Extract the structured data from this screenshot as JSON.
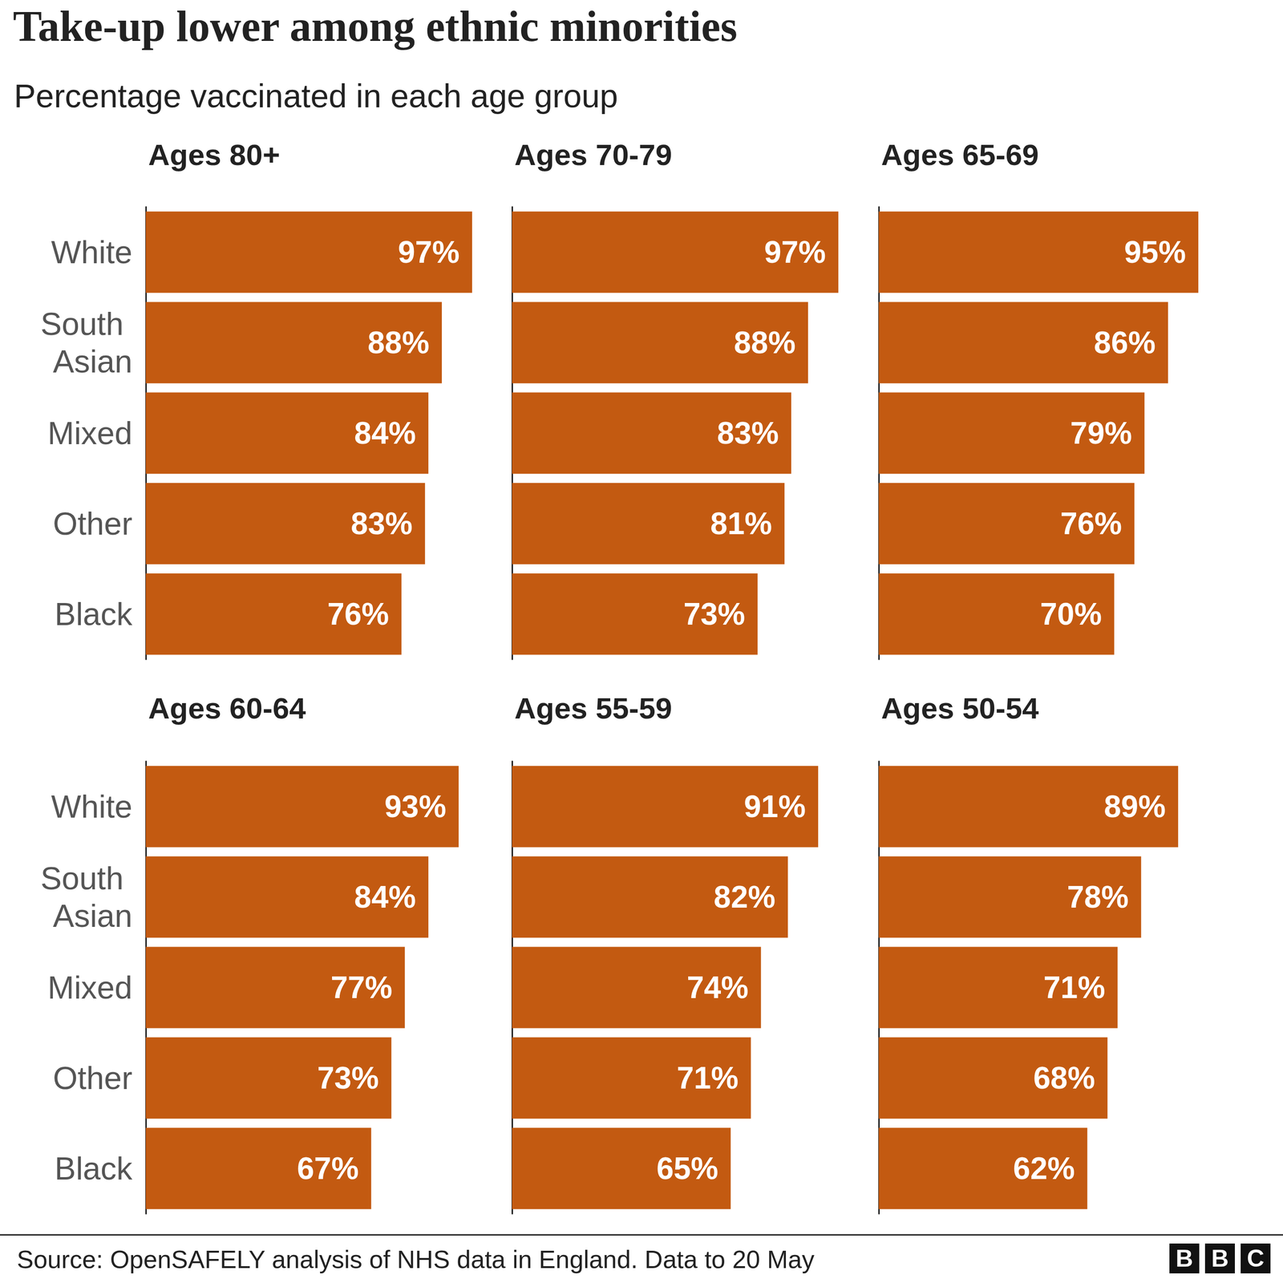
{
  "title": "Take-up lower among ethnic minorities",
  "subtitle": "Percentage vaccinated in each age group",
  "source": "Source: OpenSAFELY analysis of NHS data in England. Data to 20 May",
  "credit": "BBC",
  "chart_data": [
    {
      "type": "bar",
      "title": "Ages 80+",
      "orientation": "horizontal",
      "categories": [
        "White",
        "South Asian",
        "Mixed",
        "Other",
        "Black"
      ],
      "values": [
        97,
        88,
        84,
        83,
        76
      ],
      "value_labels": [
        "97%",
        "88%",
        "84%",
        "83%",
        "76%"
      ],
      "color": "#c35a11",
      "xlim": [
        0,
        100
      ],
      "data_labels": true,
      "tick_labels": "y",
      "grid": false
    },
    {
      "type": "bar",
      "title": "Ages 70-79",
      "orientation": "horizontal",
      "categories": [
        "White",
        "South Asian",
        "Mixed",
        "Other",
        "Black"
      ],
      "values": [
        97,
        88,
        83,
        81,
        73
      ],
      "value_labels": [
        "97%",
        "88%",
        "83%",
        "81%",
        "73%"
      ],
      "color": "#c35a11",
      "xlim": [
        0,
        100
      ],
      "data_labels": true,
      "tick_labels": false,
      "grid": false
    },
    {
      "type": "bar",
      "title": "Ages 65-69",
      "orientation": "horizontal",
      "categories": [
        "White",
        "South Asian",
        "Mixed",
        "Other",
        "Black"
      ],
      "values": [
        95,
        86,
        79,
        76,
        70
      ],
      "value_labels": [
        "95%",
        "86%",
        "79%",
        "76%",
        "70%"
      ],
      "color": "#c35a11",
      "xlim": [
        0,
        100
      ],
      "data_labels": true,
      "tick_labels": false,
      "grid": false
    },
    {
      "type": "bar",
      "title": "Ages 60-64",
      "orientation": "horizontal",
      "categories": [
        "White",
        "South Asian",
        "Mixed",
        "Other",
        "Black"
      ],
      "values": [
        93,
        84,
        77,
        73,
        67
      ],
      "value_labels": [
        "93%",
        "84%",
        "77%",
        "73%",
        "67%"
      ],
      "color": "#c35a11",
      "xlim": [
        0,
        100
      ],
      "data_labels": true,
      "tick_labels": "y",
      "grid": false
    },
    {
      "type": "bar",
      "title": "Ages 55-59",
      "orientation": "horizontal",
      "categories": [
        "White",
        "South Asian",
        "Mixed",
        "Other",
        "Black"
      ],
      "values": [
        91,
        82,
        74,
        71,
        65
      ],
      "value_labels": [
        "91%",
        "82%",
        "74%",
        "71%",
        "65%"
      ],
      "color": "#c35a11",
      "xlim": [
        0,
        100
      ],
      "data_labels": true,
      "tick_labels": false,
      "grid": false
    },
    {
      "type": "bar",
      "title": "Ages 50-54",
      "orientation": "horizontal",
      "categories": [
        "White",
        "South Asian",
        "Mixed",
        "Other",
        "Black"
      ],
      "values": [
        89,
        78,
        71,
        68,
        62
      ],
      "value_labels": [
        "89%",
        "78%",
        "71%",
        "68%",
        "62%"
      ],
      "color": "#c35a11",
      "xlim": [
        0,
        100
      ],
      "data_labels": true,
      "tick_labels": false,
      "grid": false
    }
  ]
}
